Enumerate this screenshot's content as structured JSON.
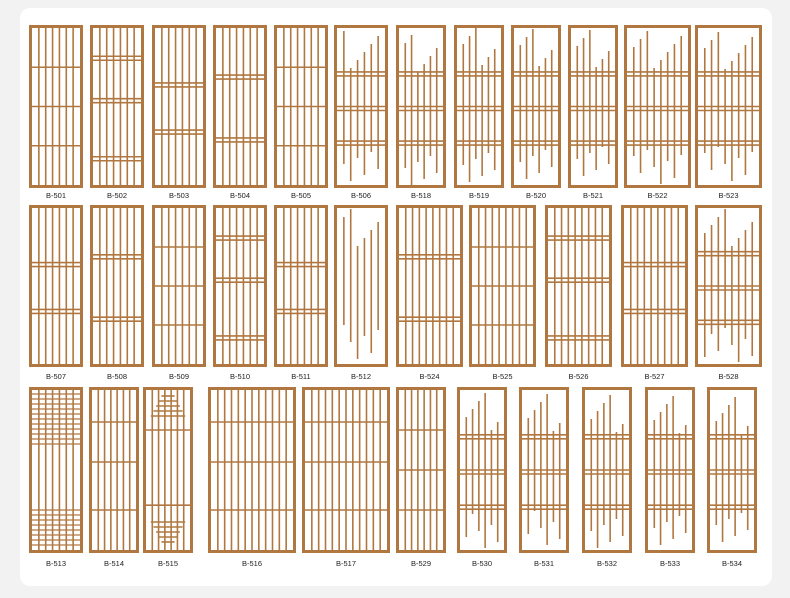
{
  "accent_color": "#b07840",
  "rows": [
    {
      "panels": [
        "B-501",
        "B-502",
        "B-503",
        "B-504",
        "B-505",
        "B-506",
        "B-518",
        "B-519",
        "B-520",
        "B-521",
        "B-522",
        "B-523"
      ]
    },
    {
      "panels": [
        "B-507",
        "B-508",
        "B-509",
        "B-510",
        "B-511",
        "B-512",
        "B-524",
        "B-525",
        "B-526",
        "B-527",
        "B-528"
      ]
    },
    {
      "panels": [
        "B-513",
        "B-514",
        "B-515",
        "B-516",
        "B-517",
        "B-529",
        "B-530",
        "B-531",
        "B-532",
        "B-533",
        "B-534"
      ]
    }
  ]
}
